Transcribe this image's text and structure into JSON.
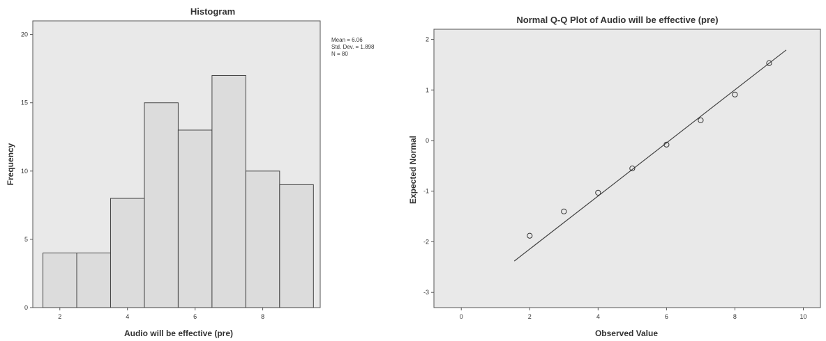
{
  "chart_data": [
    {
      "type": "bar",
      "title": "Histogram",
      "xlabel": "Audio will be effective (pre)",
      "ylabel": "Frequency",
      "x_bins": [
        {
          "from": 1.5,
          "to": 2.5,
          "count": 4
        },
        {
          "from": 2.5,
          "to": 3.5,
          "count": 4
        },
        {
          "from": 3.5,
          "to": 4.5,
          "count": 8
        },
        {
          "from": 4.5,
          "to": 5.5,
          "count": 15
        },
        {
          "from": 5.5,
          "to": 6.5,
          "count": 13
        },
        {
          "from": 6.5,
          "to": 7.5,
          "count": 17
        },
        {
          "from": 7.5,
          "to": 8.5,
          "count": 10
        },
        {
          "from": 8.5,
          "to": 9.5,
          "count": 9
        }
      ],
      "xlim": [
        1.2,
        9.7
      ],
      "ylim": [
        0,
        21
      ],
      "x_ticks": [
        2,
        4,
        6,
        8
      ],
      "y_ticks": [
        0,
        5,
        10,
        15,
        20
      ],
      "stats": [
        "Mean = 6.06",
        "Std. Dev. = 1.898",
        "N = 80"
      ],
      "grid": false
    },
    {
      "type": "scatter",
      "title": "Normal Q-Q Plot of Audio will be effective (pre)",
      "xlabel": "Observed Value",
      "ylabel": "Expected Normal",
      "points": [
        {
          "x": 2,
          "y": -1.88
        },
        {
          "x": 3,
          "y": -1.4
        },
        {
          "x": 4,
          "y": -1.03
        },
        {
          "x": 5,
          "y": -0.55
        },
        {
          "x": 6,
          "y": -0.08
        },
        {
          "x": 7,
          "y": 0.4
        },
        {
          "x": 8,
          "y": 0.91
        },
        {
          "x": 9,
          "y": 1.53
        }
      ],
      "reference_line": [
        {
          "x": 1.55,
          "y": -2.38
        },
        {
          "x": 9.5,
          "y": 1.79
        }
      ],
      "xlim": [
        -0.8,
        10.5
      ],
      "ylim": [
        -3.3,
        2.2
      ],
      "x_ticks": [
        0,
        2,
        4,
        6,
        8,
        10
      ],
      "y_ticks": [
        -3,
        -2,
        -1,
        0,
        1,
        2
      ],
      "grid": false
    }
  ]
}
